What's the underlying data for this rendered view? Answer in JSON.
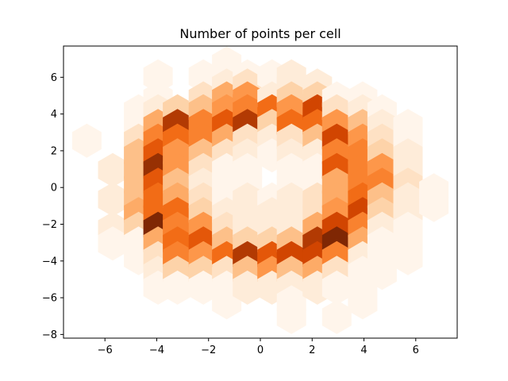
{
  "chart_data": {
    "type": "heatmap",
    "subtype": "hexbin",
    "title": "Number of points per cell",
    "xlabel": "",
    "ylabel": "",
    "xlim": [
      -7.6,
      7.6
    ],
    "ylim": [
      -8.2,
      7.7
    ],
    "xticks": [
      -6,
      -4,
      -2,
      0,
      2,
      4,
      6
    ],
    "yticks": [
      -8,
      -6,
      -4,
      -2,
      0,
      2,
      4,
      6
    ],
    "xtick_labels": [
      "−6",
      "−4",
      "−2",
      "0",
      "2",
      "4",
      "6"
    ],
    "ytick_labels": [
      "−8",
      "−6",
      "−4",
      "−2",
      "0",
      "2",
      "4",
      "6"
    ],
    "grid": false,
    "legend": "none",
    "colormap": "Oranges",
    "colors": {
      "low": "#fff5eb",
      "high": "#7f2704"
    },
    "value_range": [
      1,
      14
    ],
    "cells": [
      {
        "x": -6.7,
        "y": 2.55,
        "v": 1
      },
      {
        "x": -5.7,
        "y": 0.95,
        "v": 2
      },
      {
        "x": -5.7,
        "y": -0.65,
        "v": 2
      },
      {
        "x": -5.7,
        "y": -2.25,
        "v": 2
      },
      {
        "x": -5.7,
        "y": -3.05,
        "v": 1
      },
      {
        "x": -4.7,
        "y": 4.15,
        "v": 1
      },
      {
        "x": -4.7,
        "y": 3.35,
        "v": 1
      },
      {
        "x": -4.7,
        "y": 2.55,
        "v": 3
      },
      {
        "x": -4.7,
        "y": 1.75,
        "v": 5
      },
      {
        "x": -4.7,
        "y": 0.95,
        "v": 5
      },
      {
        "x": -4.7,
        "y": 0.15,
        "v": 5
      },
      {
        "x": -4.7,
        "y": -0.65,
        "v": 5
      },
      {
        "x": -4.7,
        "y": -1.45,
        "v": 6
      },
      {
        "x": -4.7,
        "y": -2.25,
        "v": 4
      },
      {
        "x": -4.7,
        "y": -3.05,
        "v": 1
      },
      {
        "x": -4.7,
        "y": -3.85,
        "v": 1
      },
      {
        "x": -3.95,
        "y": 6.05,
        "v": 1
      },
      {
        "x": -3.95,
        "y": 4.85,
        "v": 1
      },
      {
        "x": -3.95,
        "y": 4.15,
        "v": 2
      },
      {
        "x": -3.95,
        "y": 3.35,
        "v": 6
      },
      {
        "x": -3.95,
        "y": 2.55,
        "v": 8
      },
      {
        "x": -3.95,
        "y": 1.75,
        "v": 10
      },
      {
        "x": -3.95,
        "y": 0.95,
        "v": 13
      },
      {
        "x": -3.95,
        "y": 0.15,
        "v": 10
      },
      {
        "x": -3.95,
        "y": -0.65,
        "v": 9
      },
      {
        "x": -3.95,
        "y": -1.45,
        "v": 9
      },
      {
        "x": -3.95,
        "y": -2.25,
        "v": 14
      },
      {
        "x": -3.95,
        "y": -3.05,
        "v": 6
      },
      {
        "x": -3.95,
        "y": -3.85,
        "v": 3
      },
      {
        "x": -3.95,
        "y": -4.65,
        "v": 2
      },
      {
        "x": -3.95,
        "y": -5.45,
        "v": 1
      },
      {
        "x": -3.2,
        "y": 4.15,
        "v": 4
      },
      {
        "x": -3.2,
        "y": 3.35,
        "v": 12
      },
      {
        "x": -3.2,
        "y": 2.55,
        "v": 9
      },
      {
        "x": -3.2,
        "y": 1.75,
        "v": 7
      },
      {
        "x": -3.2,
        "y": 0.95,
        "v": 7
      },
      {
        "x": -3.2,
        "y": 0.15,
        "v": 5
      },
      {
        "x": -3.2,
        "y": -0.65,
        "v": 6
      },
      {
        "x": -3.2,
        "y": -1.45,
        "v": 9
      },
      {
        "x": -3.2,
        "y": -2.25,
        "v": 8
      },
      {
        "x": -3.2,
        "y": -3.05,
        "v": 9
      },
      {
        "x": -3.2,
        "y": -3.85,
        "v": 8
      },
      {
        "x": -3.2,
        "y": -4.65,
        "v": 4
      },
      {
        "x": -3.2,
        "y": -5.45,
        "v": 1
      },
      {
        "x": -2.2,
        "y": 6.05,
        "v": 1
      },
      {
        "x": -2.2,
        "y": 4.85,
        "v": 3
      },
      {
        "x": -2.2,
        "y": 4.15,
        "v": 5
      },
      {
        "x": -2.2,
        "y": 3.35,
        "v": 8
      },
      {
        "x": -2.2,
        "y": 2.55,
        "v": 8
      },
      {
        "x": -2.2,
        "y": 1.75,
        "v": 5
      },
      {
        "x": -2.2,
        "y": 0.95,
        "v": 3
      },
      {
        "x": -2.2,
        "y": 0.15,
        "v": 2
      },
      {
        "x": -2.2,
        "y": -0.65,
        "v": 3
      },
      {
        "x": -2.2,
        "y": -1.45,
        "v": 4
      },
      {
        "x": -2.2,
        "y": -2.25,
        "v": 7
      },
      {
        "x": -2.2,
        "y": -3.05,
        "v": 10
      },
      {
        "x": -2.2,
        "y": -3.85,
        "v": 7
      },
      {
        "x": -2.2,
        "y": -4.65,
        "v": 4
      },
      {
        "x": -2.2,
        "y": -5.45,
        "v": 1
      },
      {
        "x": -1.3,
        "y": 6.75,
        "v": 1
      },
      {
        "x": -1.3,
        "y": 5.55,
        "v": 2
      },
      {
        "x": -1.3,
        "y": 4.85,
        "v": 6
      },
      {
        "x": -1.3,
        "y": 4.15,
        "v": 7
      },
      {
        "x": -1.3,
        "y": 3.35,
        "v": 10
      },
      {
        "x": -1.3,
        "y": 2.55,
        "v": 6
      },
      {
        "x": -1.3,
        "y": 1.75,
        "v": 3
      },
      {
        "x": -1.3,
        "y": 0.95,
        "v": 1
      },
      {
        "x": -1.3,
        "y": 0.15,
        "v": 1
      },
      {
        "x": -1.3,
        "y": -0.65,
        "v": 1
      },
      {
        "x": -1.3,
        "y": -1.45,
        "v": 2
      },
      {
        "x": -1.3,
        "y": -2.25,
        "v": 3
      },
      {
        "x": -1.3,
        "y": -3.05,
        "v": 5
      },
      {
        "x": -1.3,
        "y": -3.85,
        "v": 9
      },
      {
        "x": -1.3,
        "y": -4.65,
        "v": 3
      },
      {
        "x": -1.3,
        "y": -5.45,
        "v": 1
      },
      {
        "x": -1.3,
        "y": -6.25,
        "v": 1
      },
      {
        "x": -0.5,
        "y": 6.05,
        "v": 1
      },
      {
        "x": -0.5,
        "y": 5.55,
        "v": 3
      },
      {
        "x": -0.5,
        "y": 4.85,
        "v": 7
      },
      {
        "x": -0.5,
        "y": 4.15,
        "v": 8
      },
      {
        "x": -0.5,
        "y": 3.35,
        "v": 12
      },
      {
        "x": -0.5,
        "y": 2.55,
        "v": 3
      },
      {
        "x": -0.5,
        "y": 1.75,
        "v": 2
      },
      {
        "x": -0.5,
        "y": 0.95,
        "v": 1
      },
      {
        "x": -0.5,
        "y": 0.15,
        "v": 1
      },
      {
        "x": -0.5,
        "y": -0.65,
        "v": 2
      },
      {
        "x": -0.5,
        "y": -1.45,
        "v": 2
      },
      {
        "x": -0.5,
        "y": -2.25,
        "v": 2
      },
      {
        "x": -0.5,
        "y": -3.05,
        "v": 4
      },
      {
        "x": -0.5,
        "y": -3.85,
        "v": 12
      },
      {
        "x": -0.5,
        "y": -4.65,
        "v": 5
      },
      {
        "x": -0.5,
        "y": -5.45,
        "v": 2
      },
      {
        "x": 0.45,
        "y": 6.05,
        "v": 1
      },
      {
        "x": 0.45,
        "y": 4.85,
        "v": 2
      },
      {
        "x": 0.45,
        "y": 4.15,
        "v": 9
      },
      {
        "x": 0.45,
        "y": 3.35,
        "v": 4
      },
      {
        "x": 0.45,
        "y": 2.55,
        "v": 2
      },
      {
        "x": 0.45,
        "y": 1.75,
        "v": 1
      },
      {
        "x": 0.45,
        "y": -0.65,
        "v": 1
      },
      {
        "x": 0.45,
        "y": -1.45,
        "v": 2
      },
      {
        "x": 0.45,
        "y": -2.25,
        "v": 2
      },
      {
        "x": 0.45,
        "y": -3.05,
        "v": 4
      },
      {
        "x": 0.45,
        "y": -3.85,
        "v": 10
      },
      {
        "x": 0.45,
        "y": -4.65,
        "v": 7
      },
      {
        "x": 0.45,
        "y": -5.45,
        "v": 2
      },
      {
        "x": 1.2,
        "y": 6.05,
        "v": 2
      },
      {
        "x": 1.2,
        "y": 5.55,
        "v": 2
      },
      {
        "x": 1.2,
        "y": 4.85,
        "v": 4
      },
      {
        "x": 1.2,
        "y": 4.15,
        "v": 7
      },
      {
        "x": 1.2,
        "y": 3.35,
        "v": 9
      },
      {
        "x": 1.2,
        "y": 2.55,
        "v": 3
      },
      {
        "x": 1.2,
        "y": 1.75,
        "v": 2
      },
      {
        "x": 1.2,
        "y": 0.95,
        "v": 1
      },
      {
        "x": 1.2,
        "y": 0.15,
        "v": 1
      },
      {
        "x": 1.2,
        "y": -0.65,
        "v": 2
      },
      {
        "x": 1.2,
        "y": -1.45,
        "v": 2
      },
      {
        "x": 1.2,
        "y": -2.25,
        "v": 2
      },
      {
        "x": 1.2,
        "y": -3.05,
        "v": 5
      },
      {
        "x": 1.2,
        "y": -3.85,
        "v": 11
      },
      {
        "x": 1.2,
        "y": -4.65,
        "v": 5
      },
      {
        "x": 1.2,
        "y": -5.45,
        "v": 2
      },
      {
        "x": 1.2,
        "y": -6.25,
        "v": 1
      },
      {
        "x": 1.2,
        "y": -7.05,
        "v": 1
      },
      {
        "x": 2.2,
        "y": 5.55,
        "v": 2
      },
      {
        "x": 2.2,
        "y": 4.85,
        "v": 4
      },
      {
        "x": 2.2,
        "y": 4.15,
        "v": 11
      },
      {
        "x": 2.2,
        "y": 3.35,
        "v": 9
      },
      {
        "x": 2.2,
        "y": 2.55,
        "v": 5
      },
      {
        "x": 2.2,
        "y": 1.75,
        "v": 2
      },
      {
        "x": 2.2,
        "y": 0.95,
        "v": 1
      },
      {
        "x": 2.2,
        "y": 0.15,
        "v": 1
      },
      {
        "x": 2.2,
        "y": -0.65,
        "v": 3
      },
      {
        "x": 2.2,
        "y": -1.45,
        "v": 3
      },
      {
        "x": 2.2,
        "y": -2.25,
        "v": 6
      },
      {
        "x": 2.2,
        "y": -3.05,
        "v": 12
      },
      {
        "x": 2.2,
        "y": -3.85,
        "v": 11
      },
      {
        "x": 2.2,
        "y": -4.65,
        "v": 6
      },
      {
        "x": 2.2,
        "y": -5.45,
        "v": 2
      },
      {
        "x": 2.95,
        "y": 4.85,
        "v": 1
      },
      {
        "x": 2.95,
        "y": 4.15,
        "v": 3
      },
      {
        "x": 2.95,
        "y": 3.35,
        "v": 7
      },
      {
        "x": 2.95,
        "y": 2.55,
        "v": 11
      },
      {
        "x": 2.95,
        "y": 1.75,
        "v": 8
      },
      {
        "x": 2.95,
        "y": 0.95,
        "v": 10
      },
      {
        "x": 2.95,
        "y": 0.15,
        "v": 6
      },
      {
        "x": 2.95,
        "y": -0.65,
        "v": 6
      },
      {
        "x": 2.95,
        "y": -1.45,
        "v": 7
      },
      {
        "x": 2.95,
        "y": -2.25,
        "v": 11
      },
      {
        "x": 2.95,
        "y": -3.05,
        "v": 14
      },
      {
        "x": 2.95,
        "y": -3.85,
        "v": 8
      },
      {
        "x": 2.95,
        "y": -4.65,
        "v": 3
      },
      {
        "x": 2.95,
        "y": -5.45,
        "v": 1
      },
      {
        "x": 2.95,
        "y": -7.05,
        "v": 1
      },
      {
        "x": 3.95,
        "y": 4.85,
        "v": 1
      },
      {
        "x": 3.95,
        "y": 4.15,
        "v": 2
      },
      {
        "x": 3.95,
        "y": 3.35,
        "v": 5
      },
      {
        "x": 3.95,
        "y": 2.55,
        "v": 7
      },
      {
        "x": 3.95,
        "y": 1.75,
        "v": 8
      },
      {
        "x": 3.95,
        "y": 0.95,
        "v": 8
      },
      {
        "x": 3.95,
        "y": 0.15,
        "v": 8
      },
      {
        "x": 3.95,
        "y": -0.65,
        "v": 9
      },
      {
        "x": 3.95,
        "y": -1.45,
        "v": 11
      },
      {
        "x": 3.95,
        "y": -2.25,
        "v": 8
      },
      {
        "x": 3.95,
        "y": -3.05,
        "v": 6
      },
      {
        "x": 3.95,
        "y": -3.85,
        "v": 2
      },
      {
        "x": 3.95,
        "y": -4.65,
        "v": 1
      },
      {
        "x": 3.95,
        "y": -5.45,
        "v": 1
      },
      {
        "x": 3.95,
        "y": -6.25,
        "v": 1
      },
      {
        "x": 4.7,
        "y": 4.15,
        "v": 1
      },
      {
        "x": 4.7,
        "y": 3.35,
        "v": 2
      },
      {
        "x": 4.7,
        "y": 2.55,
        "v": 3
      },
      {
        "x": 4.7,
        "y": 1.75,
        "v": 4
      },
      {
        "x": 4.7,
        "y": 0.95,
        "v": 7
      },
      {
        "x": 4.7,
        "y": 0.15,
        "v": 8
      },
      {
        "x": 4.7,
        "y": -0.65,
        "v": 5
      },
      {
        "x": 4.7,
        "y": -1.45,
        "v": 4
      },
      {
        "x": 4.7,
        "y": -2.25,
        "v": 2
      },
      {
        "x": 4.7,
        "y": -3.05,
        "v": 1
      },
      {
        "x": 4.7,
        "y": -3.85,
        "v": 1
      },
      {
        "x": 4.7,
        "y": -4.65,
        "v": 1
      },
      {
        "x": 5.7,
        "y": 3.35,
        "v": 1
      },
      {
        "x": 5.7,
        "y": 2.55,
        "v": 1
      },
      {
        "x": 5.7,
        "y": 1.75,
        "v": 2
      },
      {
        "x": 5.7,
        "y": 0.95,
        "v": 2
      },
      {
        "x": 5.7,
        "y": 0.15,
        "v": 3
      },
      {
        "x": 5.7,
        "y": -0.65,
        "v": 2
      },
      {
        "x": 5.7,
        "y": -1.45,
        "v": 2
      },
      {
        "x": 5.7,
        "y": -2.25,
        "v": 1
      },
      {
        "x": 5.7,
        "y": -3.05,
        "v": 1
      },
      {
        "x": 5.7,
        "y": -3.85,
        "v": 1
      },
      {
        "x": 6.7,
        "y": -0.15,
        "v": 1
      },
      {
        "x": 6.7,
        "y": -0.95,
        "v": 1
      }
    ]
  }
}
